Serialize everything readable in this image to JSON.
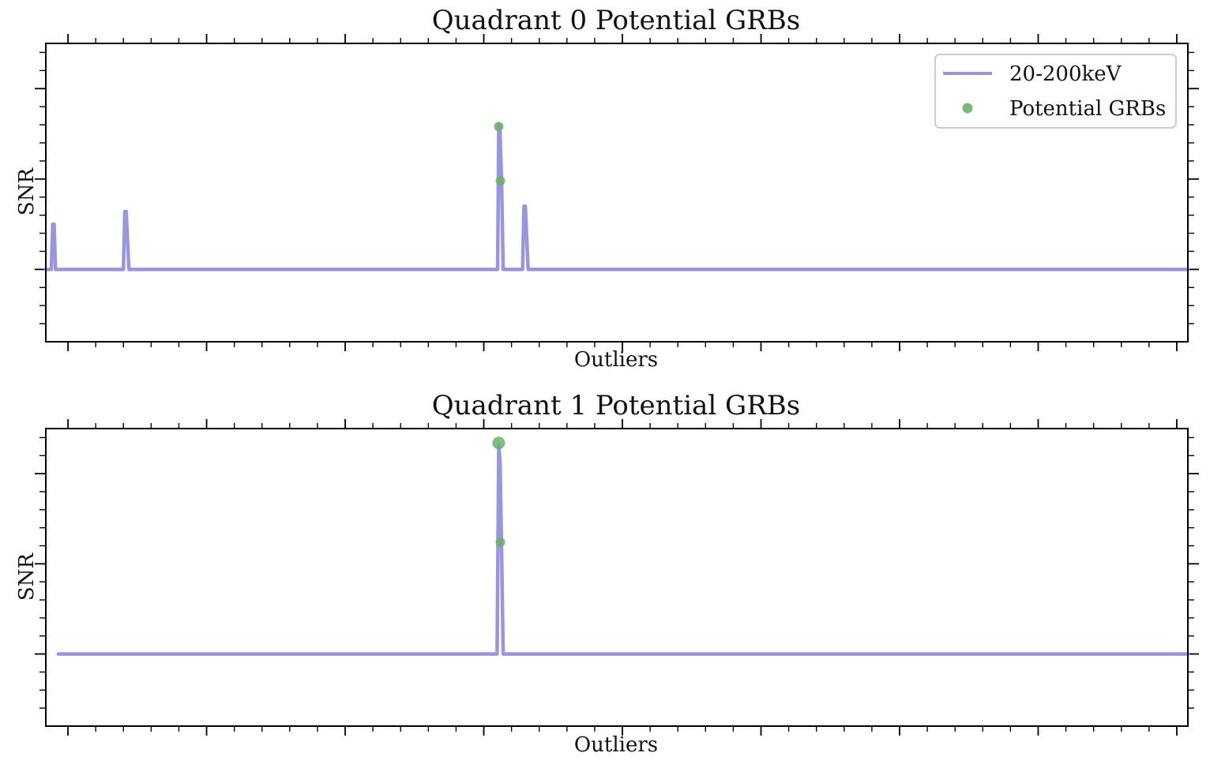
{
  "chart_data": [
    {
      "type": "line",
      "title": "Quadrant 0 Potential GRBs",
      "xlabel": "Outliers",
      "ylabel": "SNR",
      "xlim": [
        -8,
        404
      ],
      "ylim": [
        -4,
        12.5
      ],
      "grid": false,
      "legend": {
        "placement": "top-right",
        "entries": [
          "20-200keV",
          "Potential GRBs"
        ]
      },
      "series": [
        {
          "name": "20-200keV",
          "kind": "line",
          "color": "#9b94e0",
          "x": [
            -8,
            -6,
            -5.5,
            -5,
            -4.5,
            -3,
            19,
            20,
            20.5,
            21,
            22,
            154,
            155,
            155.4,
            155.8,
            156.4,
            157,
            163,
            164,
            164.5,
            165,
            166,
            404
          ],
          "y": [
            0,
            0,
            2.5,
            2.5,
            0,
            0,
            0,
            0,
            3.2,
            3.2,
            0,
            0,
            0,
            8,
            7.9,
            5.0,
            0,
            0,
            0,
            3.5,
            3.5,
            0,
            0
          ]
        },
        {
          "name": "Potential GRBs",
          "kind": "scatter",
          "color": "#6ab06a",
          "x": [
            155.4,
            156.0
          ],
          "y": [
            7.9,
            4.9
          ]
        }
      ]
    },
    {
      "type": "line",
      "title": "Quadrant 1 Potential GRBs",
      "xlabel": "Outliers",
      "ylabel": "SNR",
      "xlim": [
        -8,
        404
      ],
      "ylim": [
        -4,
        12.5
      ],
      "grid": false,
      "series": [
        {
          "name": "20-200keV",
          "kind": "line",
          "color": "#9b94e0",
          "x": [
            -3.5,
            154,
            154.8,
            155.4,
            155.9,
            156.4,
            157,
            404
          ],
          "y": [
            0,
            0,
            0,
            11.6,
            10.5,
            6.0,
            0,
            0
          ]
        },
        {
          "name": "Potential GRBs",
          "kind": "scatter",
          "color": "#6ab06a",
          "x": [
            155.4,
            156.0
          ],
          "y": [
            11.7,
            6.2
          ]
        }
      ]
    }
  ]
}
